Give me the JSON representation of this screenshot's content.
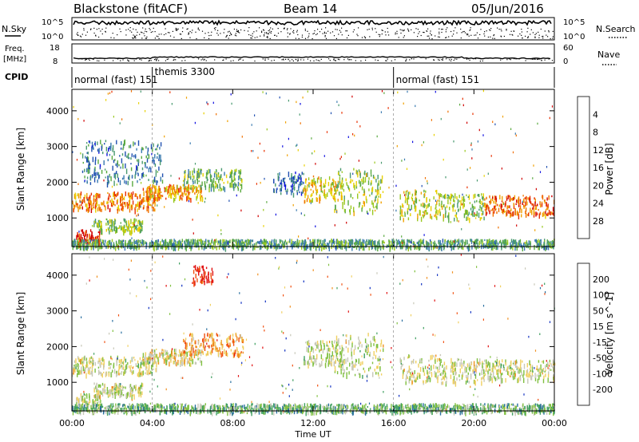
{
  "header": {
    "station": "Blackstone (fitACF)",
    "beam": "Beam 14",
    "date": "05/Jun/2016"
  },
  "summary_panels": {
    "nsky_label": "N.Sky",
    "nsky_ticks": [
      "10^5",
      "10^0"
    ],
    "nsearch_label": "N.Search",
    "freq_label_line1": "Freq.",
    "freq_label_line2": "[MHz]",
    "freq_ticks": [
      "18",
      "8"
    ],
    "nave_label": "Nave",
    "nave_ticks": [
      "60",
      "0"
    ],
    "cpid_label": "CPID",
    "cpid_segments": [
      {
        "label": "normal (fast) 151",
        "start_hour": 0,
        "end_hour": 4
      },
      {
        "label": "themis 3300",
        "start_hour": 4,
        "end_hour": 16
      },
      {
        "label": "normal (fast) 151",
        "start_hour": 16,
        "end_hour": 24
      }
    ]
  },
  "chart_data": [
    {
      "type": "heatmap",
      "panel": "power",
      "title": "",
      "xlabel": "Time UT",
      "ylabel": "Slant Range [km]",
      "x_ticks": [
        "00:00",
        "04:00",
        "08:00",
        "12:00",
        "16:00",
        "20:00",
        "00:00"
      ],
      "y_ticks": [
        "1000",
        "2000",
        "3000",
        "4000"
      ],
      "xlim_hours": [
        0,
        24
      ],
      "ylim_km": [
        200,
        4600
      ],
      "colorbar": {
        "label": "Power [dB]",
        "ticks": [
          "4",
          "8",
          "12",
          "16",
          "20",
          "24",
          "28"
        ],
        "colors": [
          "#1010e0",
          "#2050b0",
          "#3a7ab0",
          "#4a9a70",
          "#5aaa40",
          "#9ac820",
          "#e8d000",
          "#f0a000",
          "#f07000",
          "#e83000",
          "#d00000"
        ]
      },
      "bands": [
        {
          "t0": 0.0,
          "t1": 4.2,
          "r0": 1250,
          "r1": 1750,
          "value": 0.75
        },
        {
          "t0": 0.2,
          "t1": 1.4,
          "r0": 300,
          "r1": 700,
          "value": 0.95
        },
        {
          "t0": 1.0,
          "t1": 3.5,
          "r0": 650,
          "r1": 1000,
          "value": 0.45
        },
        {
          "t0": 3.5,
          "t1": 6.5,
          "r0": 1550,
          "r1": 1950,
          "value": 0.7
        },
        {
          "t0": 5.5,
          "t1": 8.5,
          "r0": 1800,
          "r1": 2400,
          "value": 0.4
        },
        {
          "t0": 0.5,
          "t1": 4.5,
          "r0": 2000,
          "r1": 3200,
          "value": 0.25
        },
        {
          "t0": 10.0,
          "t1": 11.5,
          "r0": 1700,
          "r1": 2300,
          "value": 0.2
        },
        {
          "t0": 11.5,
          "t1": 13.5,
          "r0": 1500,
          "r1": 2200,
          "value": 0.6
        },
        {
          "t0": 13.0,
          "t1": 15.5,
          "r0": 1200,
          "r1": 2400,
          "value": 0.5
        },
        {
          "t0": 16.3,
          "t1": 18.5,
          "r0": 1000,
          "r1": 1800,
          "value": 0.55
        },
        {
          "t0": 18.5,
          "t1": 20.5,
          "r0": 1000,
          "r1": 1700,
          "value": 0.45
        },
        {
          "t0": 20.5,
          "t1": 24.0,
          "r0": 1100,
          "r1": 1650,
          "value": 0.8
        },
        {
          "t0": 0.0,
          "t1": 24.0,
          "r0": 200,
          "r1": 420,
          "value": 0.35
        }
      ]
    },
    {
      "type": "heatmap",
      "panel": "velocity",
      "title": "",
      "xlabel": "Time UT",
      "ylabel": "Slant Range [km]",
      "x_ticks": [
        "00:00",
        "04:00",
        "08:00",
        "12:00",
        "16:00",
        "20:00",
        "00:00"
      ],
      "y_ticks": [
        "1000",
        "2000",
        "3000",
        "4000"
      ],
      "xlim_hours": [
        0,
        24
      ],
      "ylim_km": [
        200,
        4600
      ],
      "colorbar": {
        "label": "Velocity [m s^-1]",
        "ticks": [
          "200",
          "100",
          "50",
          "15",
          "-15",
          "-50",
          "-100",
          "-200"
        ],
        "colors": [
          "#1030c0",
          "#2a70a0",
          "#40a060",
          "#80c040",
          "#c8c8b8",
          "#f0d060",
          "#f09020",
          "#f05010",
          "#e01010"
        ]
      },
      "bands": [
        {
          "t0": 0.0,
          "t1": 4.2,
          "r0": 1250,
          "r1": 1750,
          "value": 0.5
        },
        {
          "t0": 0.2,
          "t1": 1.4,
          "r0": 300,
          "r1": 700,
          "value": 0.5
        },
        {
          "t0": 1.0,
          "t1": 3.5,
          "r0": 650,
          "r1": 1000,
          "value": 0.5
        },
        {
          "t0": 3.5,
          "t1": 6.5,
          "r0": 1550,
          "r1": 1950,
          "value": 0.55
        },
        {
          "t0": 5.5,
          "t1": 8.5,
          "r0": 1800,
          "r1": 2400,
          "value": 0.7
        },
        {
          "t0": 6.0,
          "t1": 7.0,
          "r0": 3800,
          "r1": 4300,
          "value": 0.95
        },
        {
          "t0": 11.5,
          "t1": 13.5,
          "r0": 1500,
          "r1": 2200,
          "value": 0.5
        },
        {
          "t0": 13.0,
          "t1": 15.5,
          "r0": 1200,
          "r1": 2400,
          "value": 0.5
        },
        {
          "t0": 16.3,
          "t1": 18.5,
          "r0": 1000,
          "r1": 1800,
          "value": 0.5
        },
        {
          "t0": 18.5,
          "t1": 20.5,
          "r0": 1000,
          "r1": 1700,
          "value": 0.5
        },
        {
          "t0": 20.5,
          "t1": 24.0,
          "r0": 1100,
          "r1": 1650,
          "value": 0.5
        },
        {
          "t0": 0.0,
          "t1": 24.0,
          "r0": 200,
          "r1": 420,
          "value": 0.35
        }
      ]
    }
  ]
}
